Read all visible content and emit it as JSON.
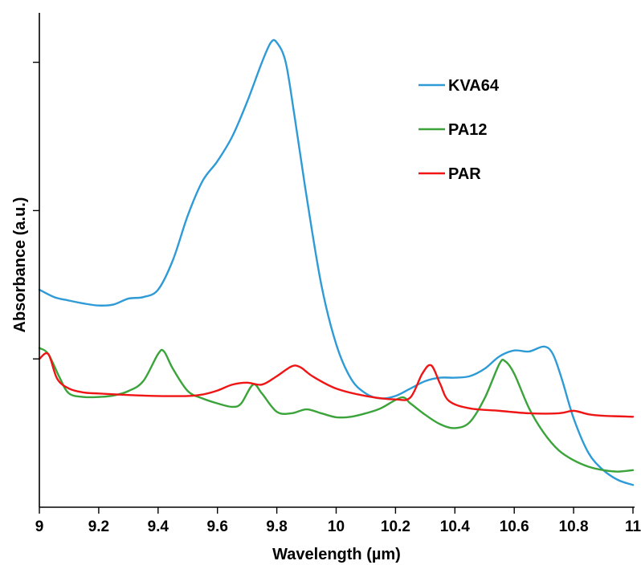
{
  "chart_data": {
    "type": "line",
    "title": "",
    "xlabel": "Wavelength (µm)",
    "ylabel": "Absorbance (a.u.)",
    "xlim": [
      9,
      11
    ],
    "ylim": [
      0,
      1
    ],
    "x_ticks": [
      "9",
      "9.2",
      "9.4",
      "9.6",
      "9.8",
      "10",
      "10.2",
      "10.4",
      "10.6",
      "10.8",
      "11"
    ],
    "y_tick_values": [
      0.3,
      0.6,
      0.9
    ],
    "y_tick_labels_shown": false,
    "grid": false,
    "legend_position": "top-right",
    "series": [
      {
        "name": "KVA64",
        "color": "#2e9bd6",
        "points": [
          [
            9.0,
            0.44
          ],
          [
            9.05,
            0.425
          ],
          [
            9.1,
            0.418
          ],
          [
            9.15,
            0.412
          ],
          [
            9.2,
            0.408
          ],
          [
            9.25,
            0.41
          ],
          [
            9.3,
            0.422
          ],
          [
            9.35,
            0.425
          ],
          [
            9.4,
            0.44
          ],
          [
            9.45,
            0.5
          ],
          [
            9.5,
            0.59
          ],
          [
            9.55,
            0.66
          ],
          [
            9.6,
            0.7
          ],
          [
            9.65,
            0.75
          ],
          [
            9.7,
            0.82
          ],
          [
            9.75,
            0.9
          ],
          [
            9.78,
            0.94
          ],
          [
            9.8,
            0.94
          ],
          [
            9.83,
            0.9
          ],
          [
            9.86,
            0.79
          ],
          [
            9.9,
            0.63
          ],
          [
            9.95,
            0.45
          ],
          [
            10.0,
            0.33
          ],
          [
            10.05,
            0.26
          ],
          [
            10.1,
            0.23
          ],
          [
            10.15,
            0.22
          ],
          [
            10.2,
            0.225
          ],
          [
            10.25,
            0.24
          ],
          [
            10.3,
            0.255
          ],
          [
            10.35,
            0.262
          ],
          [
            10.4,
            0.262
          ],
          [
            10.45,
            0.265
          ],
          [
            10.5,
            0.28
          ],
          [
            10.55,
            0.305
          ],
          [
            10.6,
            0.317
          ],
          [
            10.65,
            0.315
          ],
          [
            10.7,
            0.325
          ],
          [
            10.73,
            0.31
          ],
          [
            10.76,
            0.26
          ],
          [
            10.8,
            0.18
          ],
          [
            10.85,
            0.11
          ],
          [
            10.9,
            0.075
          ],
          [
            10.95,
            0.055
          ],
          [
            11.0,
            0.045
          ]
        ]
      },
      {
        "name": "PA12",
        "color": "#3aa33a",
        "points": [
          [
            9.0,
            0.322
          ],
          [
            9.03,
            0.31
          ],
          [
            9.07,
            0.26
          ],
          [
            9.1,
            0.23
          ],
          [
            9.15,
            0.223
          ],
          [
            9.2,
            0.223
          ],
          [
            9.25,
            0.226
          ],
          [
            9.3,
            0.235
          ],
          [
            9.35,
            0.255
          ],
          [
            9.4,
            0.31
          ],
          [
            9.42,
            0.315
          ],
          [
            9.45,
            0.28
          ],
          [
            9.5,
            0.235
          ],
          [
            9.55,
            0.22
          ],
          [
            9.6,
            0.21
          ],
          [
            9.65,
            0.203
          ],
          [
            9.68,
            0.21
          ],
          [
            9.72,
            0.248
          ],
          [
            9.75,
            0.23
          ],
          [
            9.8,
            0.193
          ],
          [
            9.85,
            0.19
          ],
          [
            9.9,
            0.198
          ],
          [
            9.95,
            0.19
          ],
          [
            10.0,
            0.182
          ],
          [
            10.05,
            0.183
          ],
          [
            10.1,
            0.19
          ],
          [
            10.15,
            0.2
          ],
          [
            10.22,
            0.222
          ],
          [
            10.25,
            0.21
          ],
          [
            10.3,
            0.187
          ],
          [
            10.35,
            0.168
          ],
          [
            10.4,
            0.16
          ],
          [
            10.45,
            0.172
          ],
          [
            10.5,
            0.22
          ],
          [
            10.55,
            0.29
          ],
          [
            10.57,
            0.295
          ],
          [
            10.6,
            0.27
          ],
          [
            10.65,
            0.2
          ],
          [
            10.7,
            0.15
          ],
          [
            10.75,
            0.115
          ],
          [
            10.8,
            0.095
          ],
          [
            10.85,
            0.082
          ],
          [
            10.9,
            0.075
          ],
          [
            10.95,
            0.072
          ],
          [
            11.0,
            0.075
          ]
        ]
      },
      {
        "name": "PAR",
        "color": "#f01515",
        "points": [
          [
            9.0,
            0.3
          ],
          [
            9.03,
            0.31
          ],
          [
            9.06,
            0.26
          ],
          [
            9.1,
            0.24
          ],
          [
            9.15,
            0.232
          ],
          [
            9.2,
            0.23
          ],
          [
            9.3,
            0.227
          ],
          [
            9.4,
            0.225
          ],
          [
            9.5,
            0.225
          ],
          [
            9.55,
            0.228
          ],
          [
            9.6,
            0.236
          ],
          [
            9.65,
            0.248
          ],
          [
            9.7,
            0.252
          ],
          [
            9.75,
            0.248
          ],
          [
            9.8,
            0.265
          ],
          [
            9.85,
            0.285
          ],
          [
            9.88,
            0.283
          ],
          [
            9.92,
            0.265
          ],
          [
            10.0,
            0.24
          ],
          [
            10.1,
            0.225
          ],
          [
            10.2,
            0.218
          ],
          [
            10.25,
            0.222
          ],
          [
            10.29,
            0.27
          ],
          [
            10.32,
            0.287
          ],
          [
            10.35,
            0.25
          ],
          [
            10.38,
            0.215
          ],
          [
            10.45,
            0.2
          ],
          [
            10.55,
            0.195
          ],
          [
            10.65,
            0.19
          ],
          [
            10.75,
            0.19
          ],
          [
            10.8,
            0.195
          ],
          [
            10.85,
            0.188
          ],
          [
            10.9,
            0.185
          ],
          [
            11.0,
            0.183
          ]
        ]
      }
    ]
  }
}
